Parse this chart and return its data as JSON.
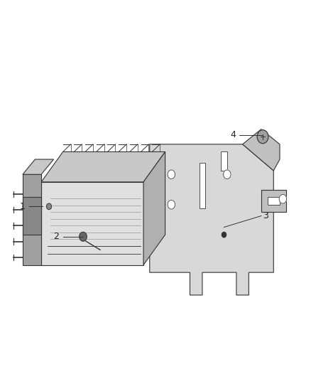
{
  "background_color": "#ffffff",
  "fig_width": 4.39,
  "fig_height": 5.33,
  "dpi": 100,
  "line_color": "#333333",
  "ecm_front_fill": "#e0e0e0",
  "ecm_top_fill": "#c8c8c8",
  "ecm_right_fill": "#b0b0b0",
  "conn_fill1": "#a0a0a0",
  "conn_fill2": "#888888",
  "bracket_fill": "#d8d8d8",
  "bracket_tab_fill": "#c0c0c0"
}
